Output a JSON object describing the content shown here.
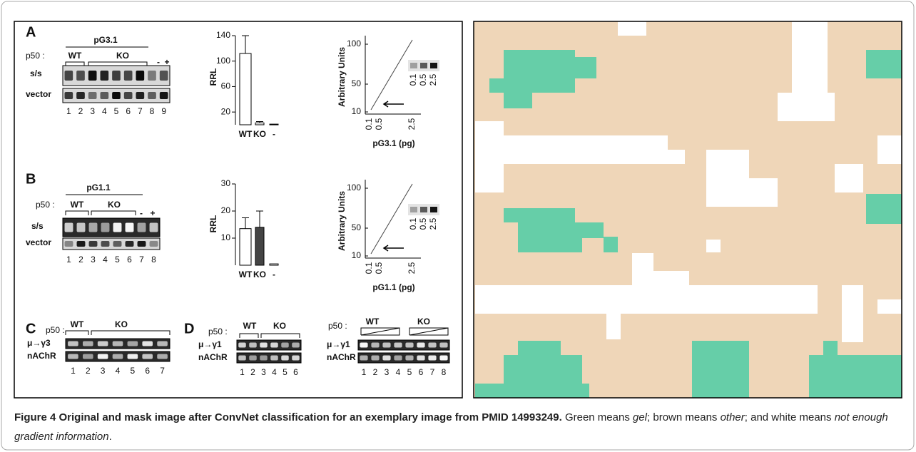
{
  "panel_a": {
    "letter": "A",
    "construct": "pG3.1",
    "p50": "p50 :",
    "wt": "WT",
    "ko": "KO",
    "neg": "-",
    "pos": "+",
    "rows": [
      "s/s",
      "vector"
    ],
    "lanes": [
      "1",
      "2",
      "3",
      "4",
      "5",
      "6",
      "7",
      "8",
      "9"
    ],
    "bar_chart": {
      "type": "bar",
      "y_label": "RRL",
      "categories": [
        "WT",
        "KO",
        "-"
      ],
      "values": [
        112,
        3,
        1
      ],
      "errors": [
        28,
        2,
        0
      ],
      "ylim": [
        0,
        140
      ],
      "yticks": [
        20,
        60,
        100,
        140
      ]
    },
    "standard": {
      "y_label": "Arbitrary Units",
      "x_label": "pG3.1 (pg)",
      "yticks": [
        "100",
        "50",
        "10"
      ],
      "xticks": [
        "0.1",
        "0.5",
        "2.5"
      ],
      "inset_labels": [
        "0.1",
        "0.5",
        "2.5"
      ]
    }
  },
  "panel_b": {
    "letter": "B",
    "construct": "pG1.1",
    "p50": "p50 :",
    "wt": "WT",
    "ko": "KO",
    "neg": "-",
    "pos": "+",
    "rows": [
      "s/s",
      "vector"
    ],
    "lanes": [
      "1",
      "2",
      "3",
      "4",
      "5",
      "6",
      "7",
      "8"
    ],
    "bar_chart": {
      "type": "bar",
      "y_label": "RRL",
      "categories": [
        "WT",
        "KO",
        "-"
      ],
      "values": [
        13.5,
        14,
        0.5
      ],
      "errors": [
        4,
        6,
        0
      ],
      "ylim": [
        0,
        30
      ],
      "yticks": [
        10,
        20,
        30
      ]
    },
    "standard": {
      "y_label": "Arbitrary Units",
      "x_label": "pG1.1 (pg)",
      "yticks": [
        "100",
        "50",
        "10"
      ],
      "xticks": [
        "0.1",
        "0.5",
        "2.5"
      ],
      "inset_labels": [
        "0.1",
        "0.5",
        "2.5"
      ]
    }
  },
  "panel_c": {
    "letter": "C",
    "p50": "p50 :",
    "wt": "WT",
    "ko": "KO",
    "rows": [
      "μ→γ3",
      "nAChR"
    ],
    "lanes": [
      "1",
      "2",
      "3",
      "4",
      "5",
      "6",
      "7"
    ]
  },
  "panel_d": {
    "letter": "D",
    "left": {
      "p50": "p50 :",
      "wt": "WT",
      "ko": "KO",
      "rows": [
        "μ→γ1",
        "nAChR"
      ],
      "lanes": [
        "1",
        "2",
        "3",
        "4",
        "5",
        "6"
      ]
    },
    "right": {
      "p50": "p50 :",
      "wt": "WT",
      "ko": "KO",
      "rows": [
        "μ→γ1",
        "nAChR"
      ],
      "lanes": [
        "1",
        "2",
        "3",
        "4",
        "5",
        "6",
        "7",
        "8"
      ]
    }
  },
  "caption": {
    "title": "Figure 4 Original and mask image after ConvNet classification for an exemplary image from PMID 14993249.",
    "parts": [
      "Green means ",
      "gel",
      "; brown means ",
      "other",
      "; and white means ",
      "not enough gradient information",
      "."
    ]
  }
}
